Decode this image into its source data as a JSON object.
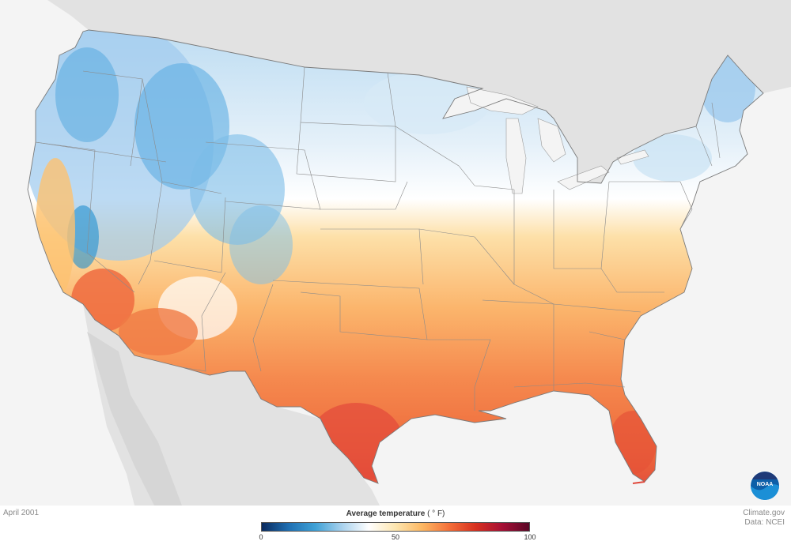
{
  "map": {
    "date_label": "April 2001",
    "credits": {
      "line1": "Climate.gov",
      "line2": "Data: NCEI"
    },
    "logo": {
      "text": "NOAA",
      "icon": "noaa-logo-icon"
    },
    "legend": {
      "title": "Average temperature",
      "unit": "( ° F)",
      "min": 0,
      "mid": 50,
      "max": 100,
      "tick_labels": [
        "0",
        "50",
        "100"
      ],
      "colors": [
        "#0a2a5e",
        "#1f6fb2",
        "#3fa1d6",
        "#a9d2ee",
        "#ffffff",
        "#fde6b0",
        "#fdb863",
        "#f4703a",
        "#d7301f",
        "#a50f35",
        "#5a0726"
      ]
    },
    "colors": {
      "ocean": "#f4f4f4",
      "neighbor_land": "#e0e0e0",
      "borders": "#7a7a7a",
      "cold": "#4aa3dc",
      "cool": "#c9e2f4",
      "mild": "#ffffff",
      "warm": "#fdc77d",
      "hot": "#f07040",
      "hottest": "#e0473a"
    }
  }
}
